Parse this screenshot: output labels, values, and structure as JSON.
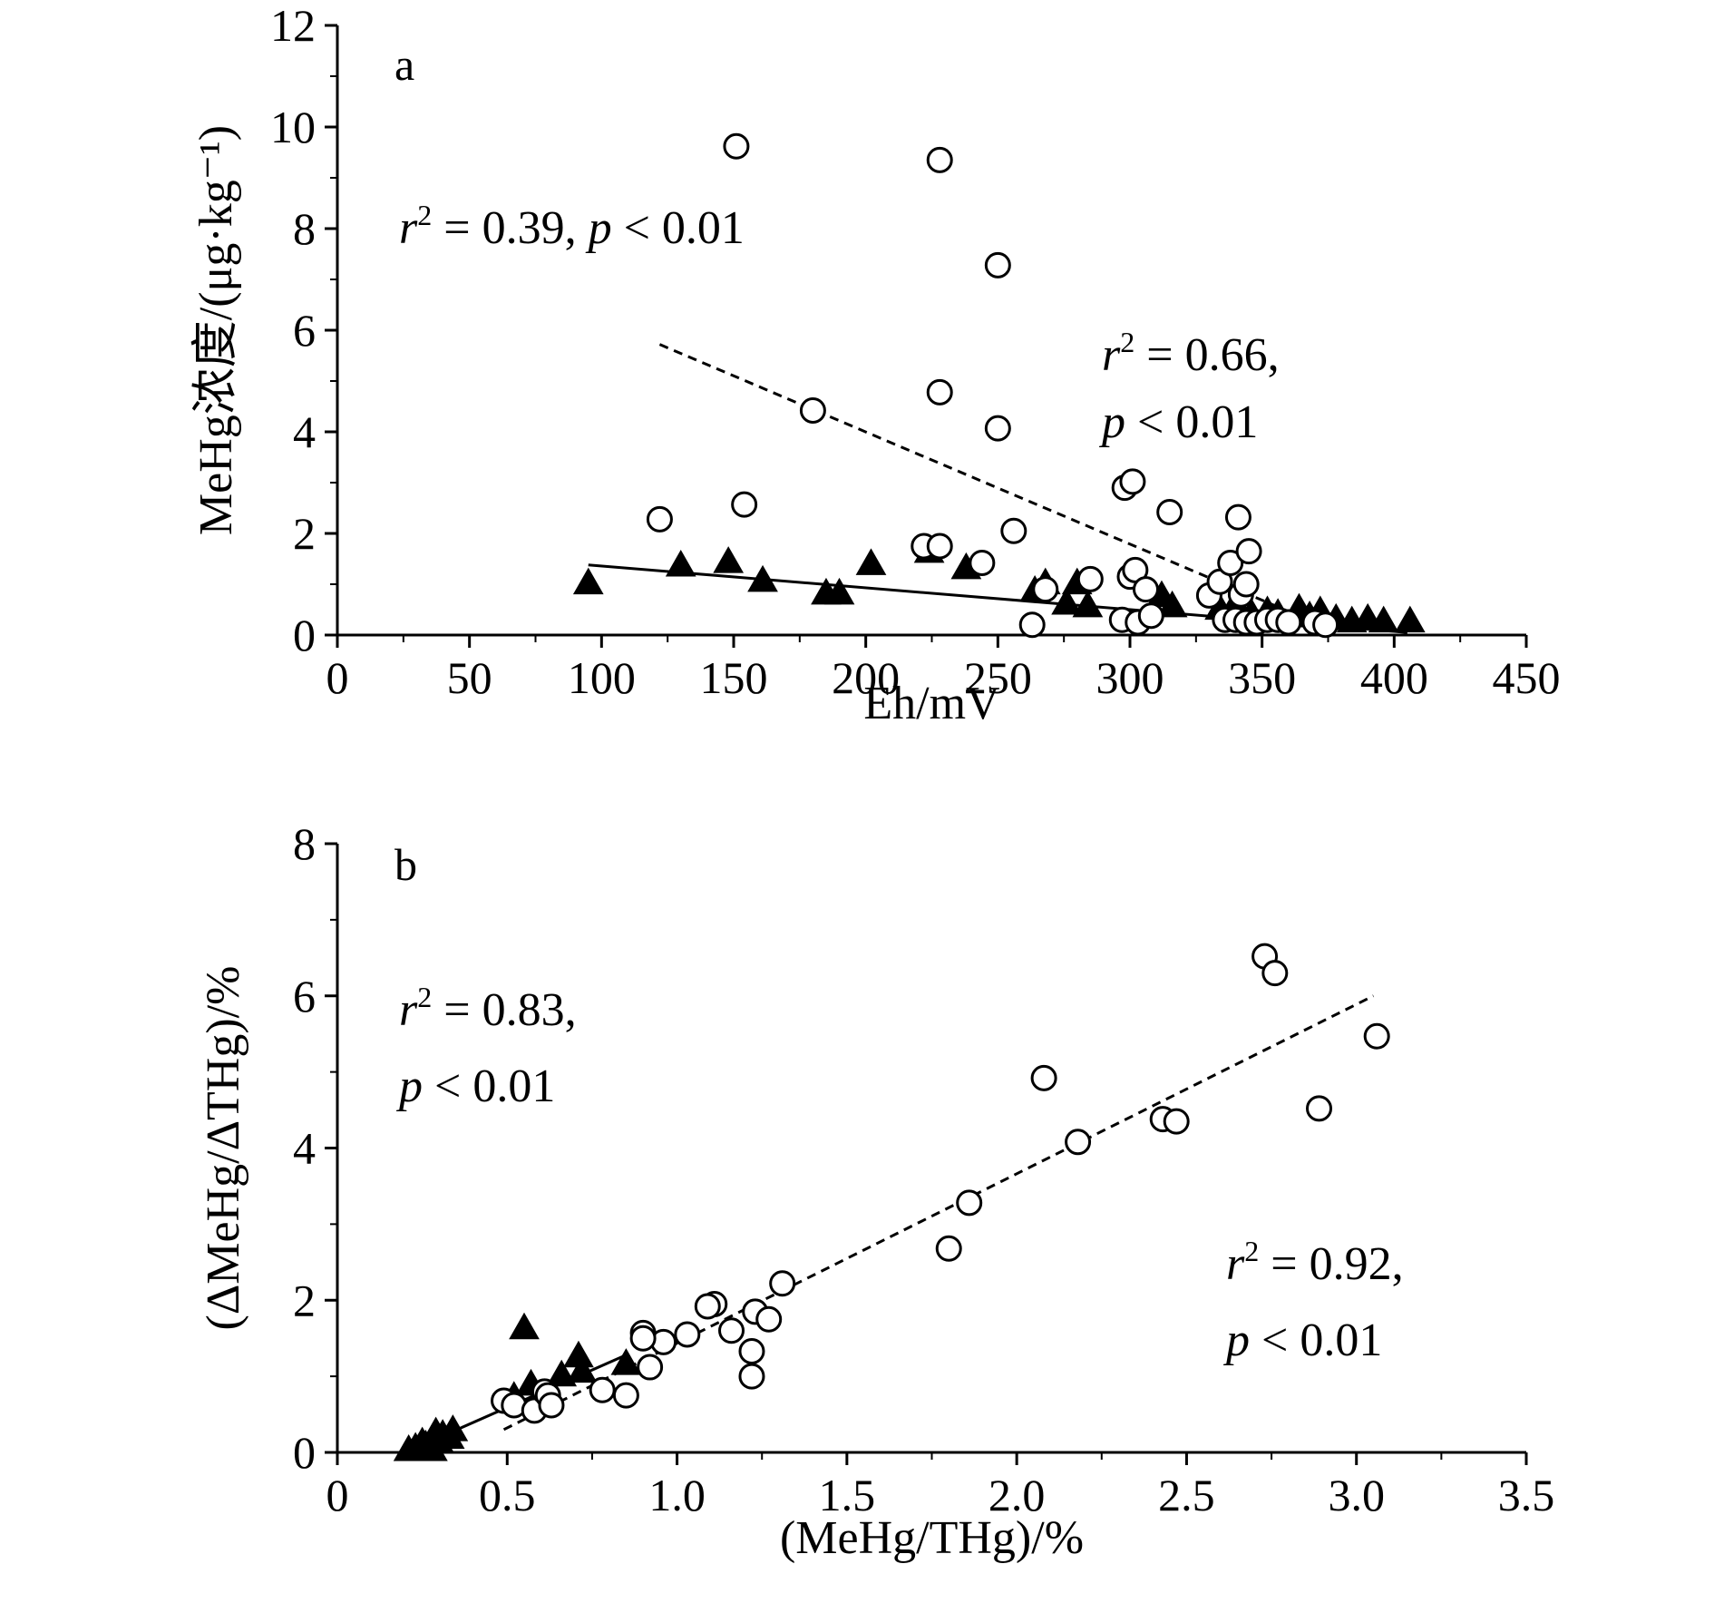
{
  "chart_data": [
    {
      "panel": "a",
      "type": "scatter",
      "xlabel": "Eh/mV",
      "ylabel": "MeHg浓度/(μg·kg⁻¹)",
      "xlim": [
        0,
        450
      ],
      "ylim": [
        0,
        12
      ],
      "xticks": [
        "0",
        "50",
        "100",
        "150",
        "200",
        "250",
        "300",
        "350",
        "400",
        "450"
      ],
      "yticks": [
        "0",
        "2",
        "4",
        "6",
        "8",
        "10",
        "12"
      ],
      "annotations": [
        {
          "lines": [
            [
              "r",
              "2",
              " = 0.39, ",
              "p",
              " < 0.01"
            ]
          ]
        },
        {
          "lines": [
            [
              "r",
              "2",
              " = 0.66,"
            ],
            [
              "p",
              "",
              " < 0.01"
            ]
          ]
        }
      ],
      "series": [
        {
          "marker": "open-circle",
          "fit": {
            "style": "dashed",
            "x": [
              122,
              372
            ],
            "y": [
              5.72,
              0.2
            ]
          },
          "points": [
            [
              151,
              9.62
            ],
            [
              228,
              9.35
            ],
            [
              250,
              7.28
            ],
            [
              228,
              4.78
            ],
            [
              180,
              4.42
            ],
            [
              250,
              4.07
            ],
            [
              122,
              2.28
            ],
            [
              154,
              2.57
            ],
            [
              222,
              1.75
            ],
            [
              228,
              1.75
            ],
            [
              256,
              2.05
            ],
            [
              244,
              1.42
            ],
            [
              268,
              0.9
            ],
            [
              263,
              0.2
            ],
            [
              285,
              1.1
            ],
            [
              298,
              2.9
            ],
            [
              301,
              3.02
            ],
            [
              315,
              2.42
            ],
            [
              297,
              0.3
            ],
            [
              300,
              1.15
            ],
            [
              302,
              1.28
            ],
            [
              306,
              0.9
            ],
            [
              303,
              0.25
            ],
            [
              308,
              0.38
            ],
            [
              330,
              0.78
            ],
            [
              334,
              1.05
            ],
            [
              336,
              0.3
            ],
            [
              338,
              1.42
            ],
            [
              340,
              0.3
            ],
            [
              341,
              2.32
            ],
            [
              342,
              0.8
            ],
            [
              344,
              1.0
            ],
            [
              345,
              1.65
            ],
            [
              344,
              0.25
            ],
            [
              348,
              0.25
            ],
            [
              352,
              0.3
            ],
            [
              356,
              0.3
            ],
            [
              360,
              0.25
            ],
            [
              370,
              0.25
            ],
            [
              374,
              0.2
            ]
          ]
        },
        {
          "marker": "filled-triangle",
          "fit": {
            "style": "solid",
            "x": [
              95,
              405
            ],
            "y": [
              1.38,
              0.05
            ]
          },
          "points": [
            [
              95,
              1.0
            ],
            [
              130,
              1.35
            ],
            [
              148,
              1.42
            ],
            [
              161,
              1.05
            ],
            [
              185,
              0.8
            ],
            [
              190,
              0.8
            ],
            [
              202,
              1.38
            ],
            [
              224,
              1.62
            ],
            [
              238,
              1.3
            ],
            [
              264,
              0.85
            ],
            [
              268,
              1.0
            ],
            [
              276,
              0.6
            ],
            [
              280,
              1.0
            ],
            [
              284,
              0.55
            ],
            [
              312,
              0.75
            ],
            [
              316,
              0.55
            ],
            [
              334,
              0.5
            ],
            [
              340,
              0.6
            ],
            [
              346,
              0.4
            ],
            [
              352,
              0.45
            ],
            [
              356,
              0.4
            ],
            [
              364,
              0.5
            ],
            [
              368,
              0.35
            ],
            [
              372,
              0.45
            ],
            [
              378,
              0.3
            ],
            [
              384,
              0.25
            ],
            [
              390,
              0.3
            ],
            [
              396,
              0.25
            ],
            [
              406,
              0.25
            ]
          ]
        }
      ]
    },
    {
      "panel": "b",
      "type": "scatter",
      "xlabel": "(MeHg/THg)/%",
      "ylabel": "(ΔMeHg/ΔTHg)/%",
      "xlim": [
        0,
        3.5
      ],
      "ylim": [
        0,
        8
      ],
      "xticks": [
        "0",
        "0.5",
        "1.0",
        "1.5",
        "2.0",
        "2.5",
        "3.0",
        "3.5"
      ],
      "yticks": [
        "0",
        "2",
        "4",
        "6",
        "8"
      ],
      "annotations": [
        {
          "lines": [
            [
              "r",
              "2",
              " = 0.83,"
            ],
            [
              "p",
              "",
              " < 0.01"
            ]
          ]
        },
        {
          "lines": [
            [
              "r",
              "2",
              " = 0.92,"
            ],
            [
              "p",
              "",
              " < 0.01"
            ]
          ]
        }
      ],
      "series": [
        {
          "marker": "open-circle",
          "fit": {
            "style": "dashed",
            "x": [
              0.49,
              3.05
            ],
            "y": [
              0.3,
              6.0
            ]
          },
          "points": [
            [
              2.73,
              6.52
            ],
            [
              2.76,
              6.3
            ],
            [
              3.06,
              5.47
            ],
            [
              2.89,
              4.52
            ],
            [
              2.08,
              4.92
            ],
            [
              2.18,
              4.08
            ],
            [
              2.43,
              4.38
            ],
            [
              2.47,
              4.35
            ],
            [
              1.86,
              3.28
            ],
            [
              1.8,
              2.68
            ],
            [
              1.31,
              2.22
            ],
            [
              1.11,
              1.95
            ],
            [
              1.09,
              1.92
            ],
            [
              1.23,
              1.85
            ],
            [
              1.27,
              1.75
            ],
            [
              1.16,
              1.6
            ],
            [
              1.03,
              1.55
            ],
            [
              0.96,
              1.45
            ],
            [
              0.9,
              1.57
            ],
            [
              0.9,
              1.5
            ],
            [
              0.92,
              1.12
            ],
            [
              1.22,
              1.33
            ],
            [
              1.22,
              1.0
            ],
            [
              0.78,
              0.82
            ],
            [
              0.85,
              0.75
            ],
            [
              0.49,
              0.68
            ],
            [
              0.52,
              0.62
            ],
            [
              0.58,
              0.55
            ],
            [
              0.61,
              0.8
            ],
            [
              0.62,
              0.75
            ],
            [
              0.63,
              0.62
            ]
          ]
        },
        {
          "marker": "filled-triangle",
          "fit": {
            "style": "solid",
            "x": [
              0.2,
              0.85
            ],
            "y": [
              0.0,
              1.28
            ]
          },
          "points": [
            [
              0.55,
              1.62
            ],
            [
              0.71,
              1.25
            ],
            [
              0.72,
              1.05
            ],
            [
              0.85,
              1.15
            ],
            [
              0.66,
              1.0
            ],
            [
              0.57,
              0.88
            ],
            [
              0.52,
              0.72
            ],
            [
              0.34,
              0.28
            ],
            [
              0.31,
              0.22
            ],
            [
              0.3,
              0.12
            ],
            [
              0.28,
              0.15
            ],
            [
              0.26,
              0.08
            ],
            [
              0.25,
              0.12
            ],
            [
              0.23,
              0.05
            ],
            [
              0.21,
              0.02
            ],
            [
              0.28,
              0.02
            ],
            [
              0.33,
              0.18
            ],
            [
              0.29,
              0.25
            ]
          ]
        }
      ]
    }
  ]
}
